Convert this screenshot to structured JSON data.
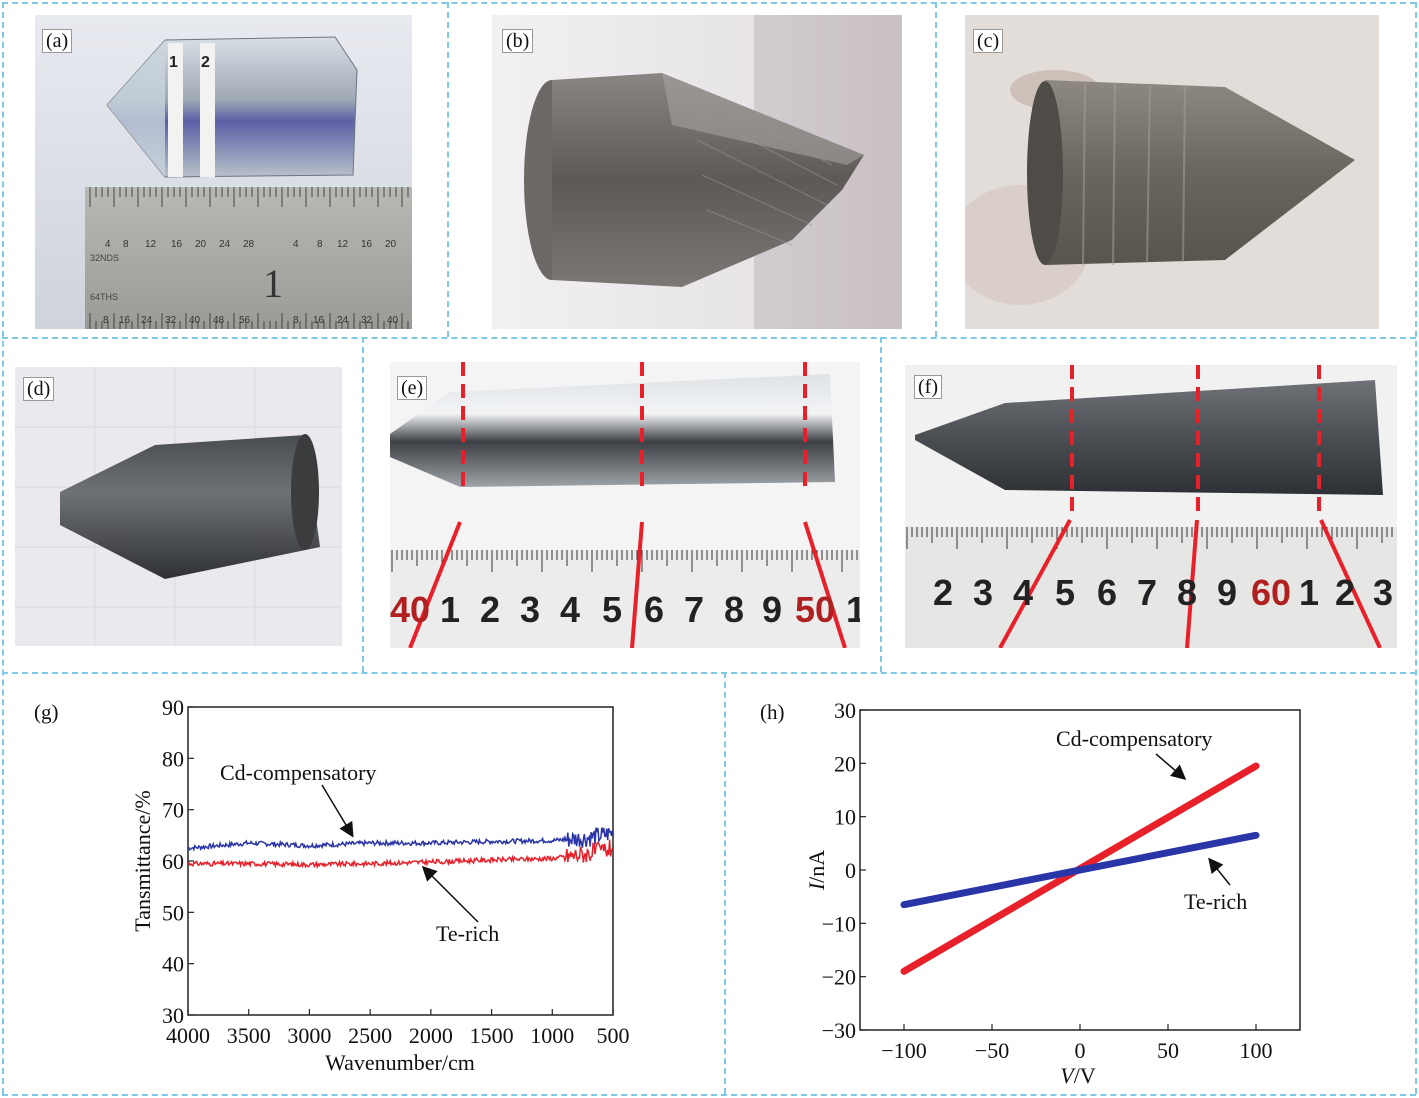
{
  "colors": {
    "divider": "#7ec9e6",
    "marker": "#e8202a",
    "series_blue": "#2a35a8",
    "series_red": "#e8202a"
  },
  "panels": [
    {
      "label": "(a)",
      "ruler_text": [
        "4",
        "8",
        "12",
        "16",
        "20",
        "24",
        "28",
        "4",
        "8",
        "12",
        "16",
        "20",
        "32NDS",
        "1",
        "64THS",
        "8",
        "16",
        "24",
        "32",
        "40",
        "48",
        "56",
        "8",
        "16",
        "24",
        "32",
        "40"
      ],
      "markers": [
        "1",
        "2"
      ]
    },
    {
      "label": "(b)"
    },
    {
      "label": "(c)"
    },
    {
      "label": "(d)"
    },
    {
      "label": "(e)",
      "ruler_text": [
        "40",
        "1",
        "2",
        "3",
        "4",
        "5",
        "6",
        "7",
        "8",
        "9",
        "50",
        "1"
      ]
    },
    {
      "label": "(f)",
      "ruler_text": [
        "2",
        "3",
        "4",
        "5",
        "6",
        "7",
        "8",
        "9",
        "60",
        "1",
        "2",
        "3"
      ]
    }
  ],
  "chart_data": [
    {
      "panel_label": "(g)",
      "type": "line",
      "xlabel": "Wavenumber/cm",
      "ylabel": "Tansmittance/%",
      "xlim": [
        4000,
        500
      ],
      "ylim": [
        30,
        90
      ],
      "x_ticks": [
        4000,
        3500,
        3000,
        2500,
        2000,
        1500,
        1000,
        500
      ],
      "y_ticks": [
        30,
        40,
        50,
        60,
        70,
        80,
        90
      ],
      "series": [
        {
          "name": "Cd-compensatory",
          "color": "#2a35a8",
          "x": [
            4000,
            3500,
            3000,
            2500,
            2000,
            1500,
            1000,
            700,
            500
          ],
          "y": [
            62.5,
            63.5,
            63.0,
            63.5,
            63.5,
            63.8,
            64.0,
            64.5,
            65.5
          ]
        },
        {
          "name": "Te-rich",
          "color": "#e8202a",
          "x": [
            4000,
            3500,
            3000,
            2500,
            2000,
            1500,
            1000,
            700,
            500
          ],
          "y": [
            59.5,
            59.5,
            59.3,
            59.5,
            59.8,
            60.2,
            60.5,
            61.5,
            62.5
          ]
        }
      ],
      "annotations": [
        {
          "text": "Cd-compensatory",
          "points_to": "Cd-compensatory",
          "x": 2500,
          "y": 63.5
        },
        {
          "text": "Te-rich",
          "points_to": "Te-rich",
          "x": 2000,
          "y": 59.8
        }
      ]
    },
    {
      "panel_label": "(h)",
      "type": "line",
      "xlabel_italic": "V",
      "xlabel_unit": "/V",
      "ylabel_italic": "I",
      "ylabel_unit": "/nA",
      "xlim": [
        -125,
        125
      ],
      "ylim": [
        -30,
        30
      ],
      "x_ticks": [
        -100,
        -50,
        0,
        50,
        100
      ],
      "y_ticks": [
        -30,
        -20,
        -10,
        0,
        10,
        20,
        30
      ],
      "series": [
        {
          "name": "Cd-compensatory",
          "color": "#e8202a",
          "x": [
            -100,
            0,
            100
          ],
          "y": [
            -19,
            0.2,
            19.5
          ]
        },
        {
          "name": "Te-rich",
          "color": "#2a35a8",
          "x": [
            -100,
            0,
            100
          ],
          "y": [
            -6.5,
            0,
            6.5
          ]
        }
      ],
      "annotations": [
        {
          "text": "Cd-compensatory",
          "points_to": "Cd-compensatory",
          "x": 75,
          "y": 15
        },
        {
          "text": "Te-rich",
          "points_to": "Te-rich",
          "x": 75,
          "y": 5
        }
      ]
    }
  ]
}
